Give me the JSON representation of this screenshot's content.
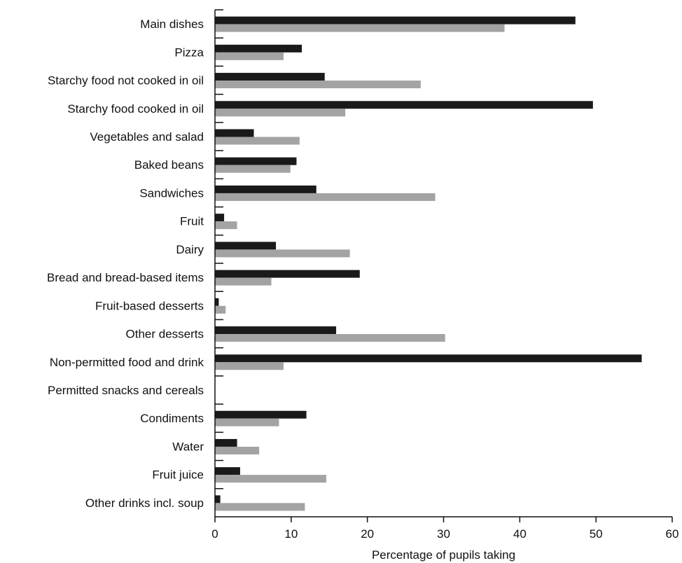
{
  "chart_data": {
    "type": "bar",
    "orientation": "horizontal",
    "title": "",
    "xlabel": "Percentage of pupils taking",
    "ylabel": "",
    "xlim": [
      0,
      60
    ],
    "xticks": [
      0,
      10,
      20,
      30,
      40,
      50,
      60
    ],
    "grid": false,
    "legend": "none",
    "categories": [
      "Main dishes",
      "Pizza",
      "Starchy food not cooked in oil",
      "Starchy food cooked in oil",
      "Vegetables and salad",
      "Baked beans",
      "Sandwiches",
      "Fruit",
      "Dairy",
      "Bread and bread-based items",
      "Fruit-based desserts",
      "Other desserts",
      "Non-permitted food and drink",
      "Permitted snacks and cereals",
      "Condiments",
      "Water",
      "Fruit juice",
      "Other drinks incl. soup"
    ],
    "series": [
      {
        "color": "#1a1a1a",
        "values": [
          47.3,
          11.4,
          14.4,
          49.6,
          5.1,
          10.7,
          13.3,
          1.2,
          8.0,
          19.0,
          0.5,
          15.9,
          56.0,
          0,
          12.0,
          2.9,
          3.3,
          0.7
        ]
      },
      {
        "color": "#a3a3a3",
        "values": [
          38.0,
          9.0,
          27.0,
          17.1,
          11.1,
          9.9,
          28.9,
          2.9,
          17.7,
          7.4,
          1.4,
          30.2,
          9.0,
          0,
          8.4,
          5.8,
          14.6,
          11.8
        ]
      }
    ]
  }
}
